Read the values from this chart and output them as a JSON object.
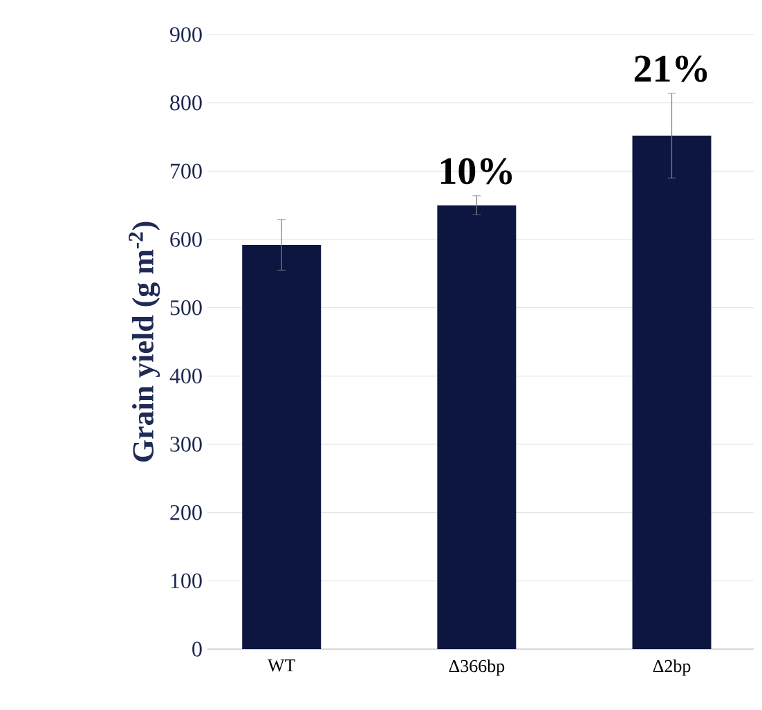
{
  "chart_data": {
    "type": "bar",
    "ylabel": "Grain yield (g m$^{-2}$)",
    "categories": [
      "WT",
      "Δ366bp",
      "Δ2bp"
    ],
    "values": [
      592,
      650,
      752
    ],
    "errors": [
      37,
      14,
      62
    ],
    "color": "#0c1640",
    "ylim": [
      0,
      900
    ],
    "yticks": [
      0,
      100,
      200,
      300,
      400,
      500,
      600,
      700,
      800,
      900
    ],
    "grid": "y",
    "annotations": [
      "10%",
      "21%"
    ]
  }
}
